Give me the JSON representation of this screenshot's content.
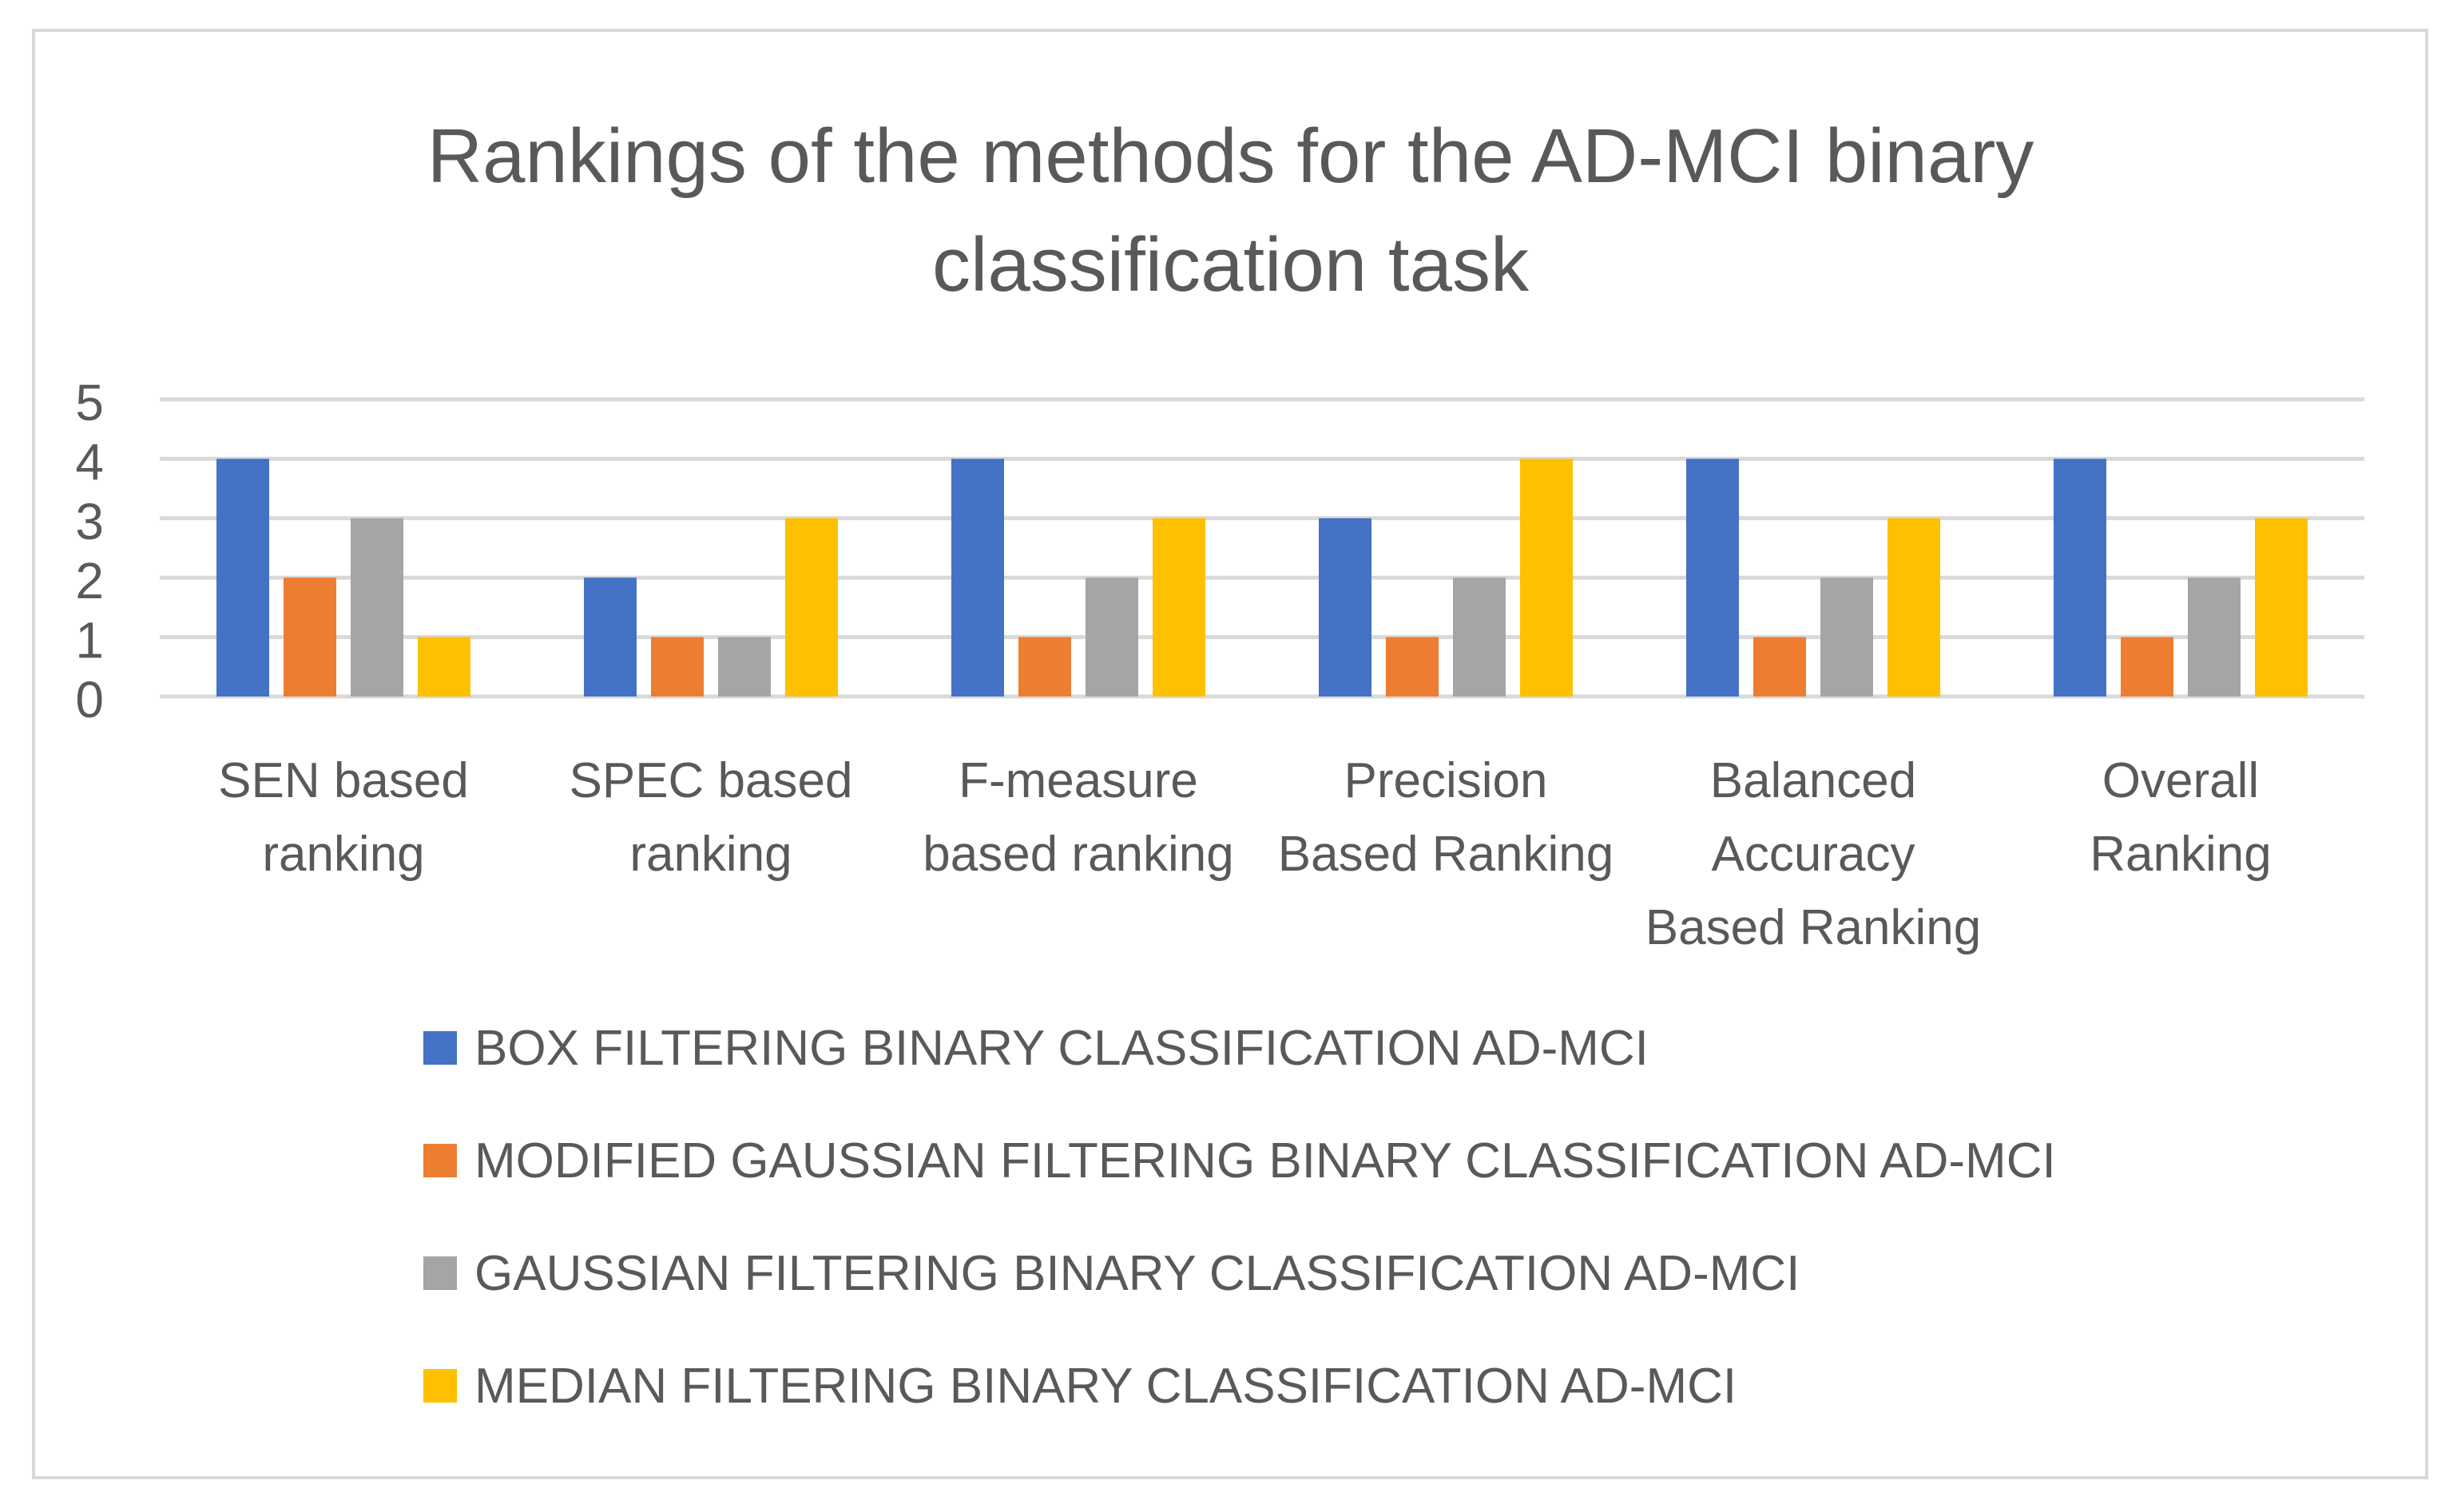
{
  "chart_data": {
    "type": "bar",
    "title": "Rankings of the methods for the AD-MCI binary classification task",
    "title_lines": [
      "Rankings of the methods for the AD-MCI binary",
      "classification task"
    ],
    "categories": [
      "SEN based ranking",
      "SPEC based ranking",
      "F-measure based ranking",
      "Precision Based Ranking",
      "Balanced Accuracy Based Ranking",
      "Overall Ranking"
    ],
    "category_lines": [
      [
        "SEN based",
        "ranking"
      ],
      [
        "SPEC based",
        "ranking"
      ],
      [
        "F-measure",
        "based ranking"
      ],
      [
        "Precision",
        "Based Ranking"
      ],
      [
        "Balanced",
        "Accuracy",
        "Based Ranking"
      ],
      [
        "Overall",
        "Ranking"
      ]
    ],
    "series": [
      {
        "name": "BOX FILTERING BINARY CLASSIFICATION AD-MCI",
        "color": "#4472C4",
        "values": [
          4,
          2,
          4,
          3,
          4,
          4
        ]
      },
      {
        "name": "MODIFIED GAUSSIAN FILTERING BINARY CLASSIFICATION AD-MCI",
        "color": "#ED7D31",
        "values": [
          2,
          1,
          1,
          1,
          1,
          1
        ]
      },
      {
        "name": "GAUSSIAN FILTERING BINARY CLASSIFICATION AD-MCI",
        "color": "#A5A5A5",
        "values": [
          3,
          1,
          2,
          2,
          2,
          2
        ]
      },
      {
        "name": "MEDIAN FILTERING BINARY CLASSIFICATION AD-MCI",
        "color": "#FFC000",
        "values": [
          1,
          3,
          3,
          4,
          3,
          3
        ]
      }
    ],
    "ylim": [
      0,
      5
    ],
    "yticks": [
      "0",
      "1",
      "2",
      "3",
      "4",
      "5"
    ],
    "grid": true,
    "legend_position": "bottom",
    "xlabel": "",
    "ylabel": ""
  }
}
